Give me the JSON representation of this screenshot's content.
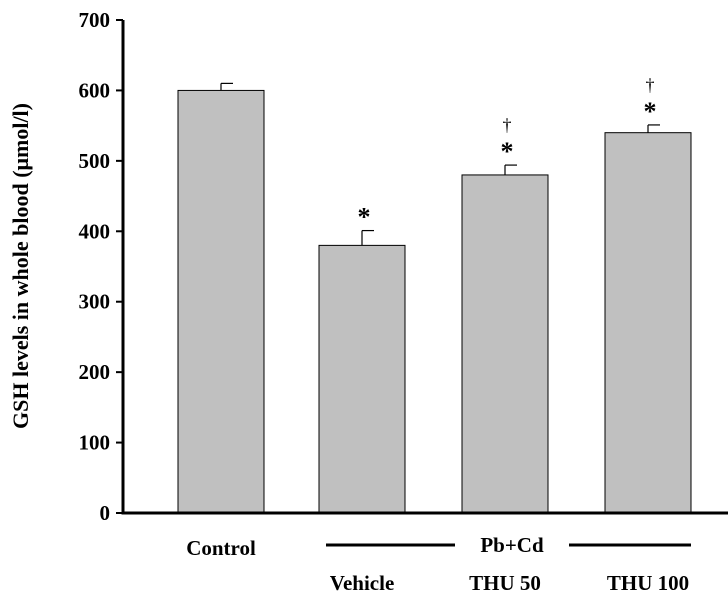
{
  "chart_data": {
    "type": "bar",
    "title": "",
    "xlabel": "",
    "ylabel": "GSH levels in whole blood (μmol/l)",
    "ylim": [
      0,
      700
    ],
    "yticks": [
      0,
      100,
      200,
      300,
      400,
      500,
      600,
      700
    ],
    "categories": [
      "Control",
      "Vehicle",
      "THU 50",
      "THU 100"
    ],
    "values": [
      600,
      380,
      480,
      540
    ],
    "errors": [
      10,
      21,
      14,
      11
    ],
    "significance": [
      "",
      "*",
      "*",
      "*"
    ],
    "significance_vs_vehicle": [
      "",
      "",
      "†",
      "†"
    ],
    "group_label": "Pb+Cd",
    "bar_color": "#c0c0c0",
    "grid": false,
    "legend": "none"
  }
}
